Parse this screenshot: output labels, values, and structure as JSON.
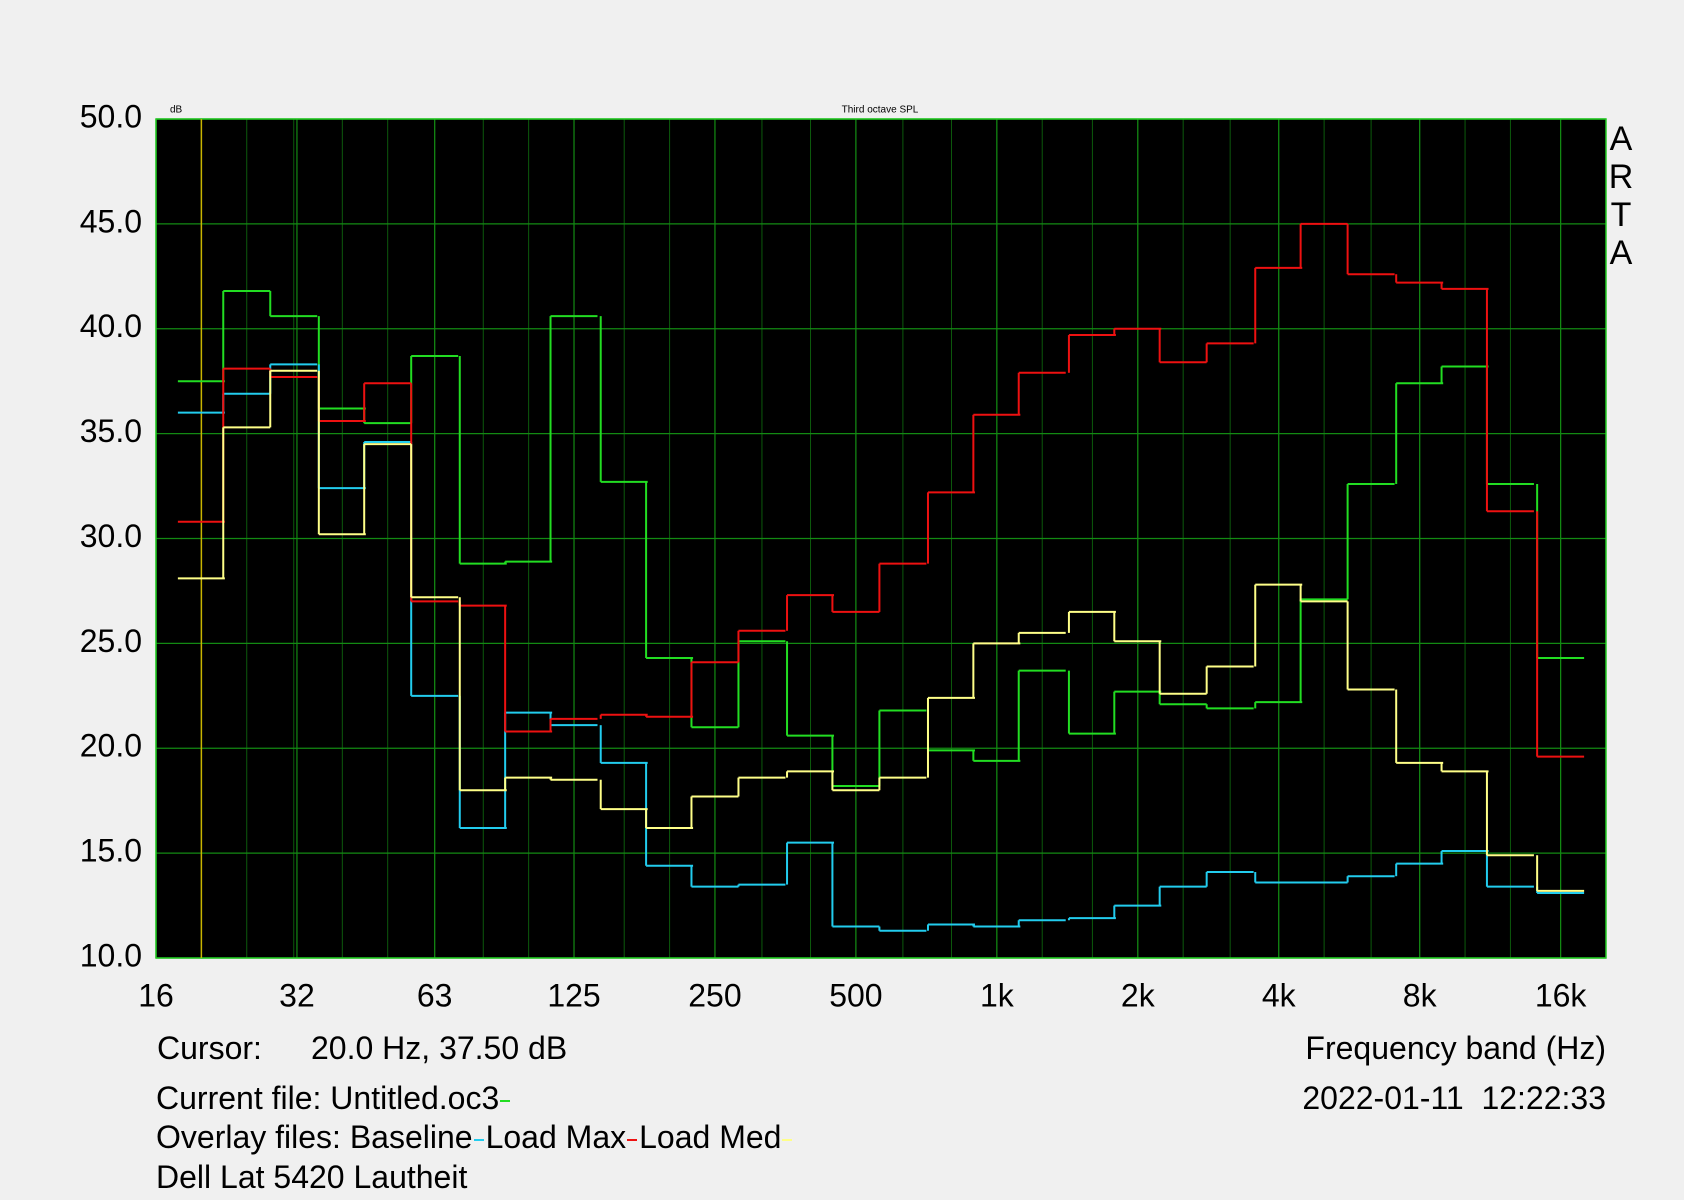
{
  "chart_data": {
    "type": "step",
    "title": "Third octave SPL",
    "y_unit": "dB",
    "brand": "ARTA",
    "x_label": "Frequency band (Hz)",
    "cursor_label": "Cursor:",
    "cursor_readout": "20.0 Hz, 37.50 dB",
    "cursor_x": 20,
    "cursor_color": "#c8b400",
    "current_file_label": "Current file:",
    "overlay_label": "Overlay files:",
    "timestamp": "2022-01-11  12:22:33",
    "note": "Dell Lat 5420 Lautheit",
    "log_x": true,
    "grid": true,
    "x": [
      20,
      25,
      31.5,
      40,
      50,
      63,
      80,
      100,
      125,
      160,
      200,
      250,
      315,
      400,
      500,
      630,
      800,
      1000,
      1250,
      1600,
      2000,
      2500,
      3150,
      4000,
      5000,
      6300,
      8000,
      10000,
      12500,
      16000
    ],
    "xlim": [
      16,
      20000
    ],
    "xticks": [
      16,
      32,
      63,
      125,
      250,
      500,
      {
        "value": 1000,
        "label": "1k"
      },
      {
        "value": 2000,
        "label": "2k"
      },
      {
        "value": 4000,
        "label": "4k"
      },
      {
        "value": 8000,
        "label": "8k"
      },
      {
        "value": 16000,
        "label": "16k"
      }
    ],
    "ylim": [
      10,
      50
    ],
    "yticks": [
      {
        "value": 10,
        "label": "10.0"
      },
      {
        "value": 15,
        "label": "15.0"
      },
      {
        "value": 20,
        "label": "20.0"
      },
      {
        "value": 25,
        "label": "25.0"
      },
      {
        "value": 30,
        "label": "30.0"
      },
      {
        "value": 35,
        "label": "35.0"
      },
      {
        "value": 40,
        "label": "40.0"
      },
      {
        "value": 45,
        "label": "45.0"
      },
      {
        "value": 50,
        "label": "50.0"
      }
    ],
    "series": [
      {
        "name": "Untitled.oc3",
        "color": "#22dd22",
        "values": [
          37.5,
          41.8,
          40.6,
          36.2,
          35.5,
          38.7,
          28.8,
          28.9,
          40.6,
          32.7,
          24.3,
          21.0,
          25.1,
          20.6,
          18.2,
          21.8,
          19.9,
          19.4,
          23.7,
          20.7,
          22.7,
          22.1,
          21.9,
          22.2,
          27.1,
          32.6,
          37.4,
          38.2,
          32.6,
          24.3
        ]
      },
      {
        "name": "Baseline",
        "color": "#22ccee",
        "values": [
          36.0,
          36.9,
          38.3,
          32.4,
          34.6,
          22.5,
          16.2,
          21.7,
          21.1,
          19.3,
          14.4,
          13.4,
          13.5,
          15.5,
          11.5,
          11.3,
          11.6,
          11.5,
          11.8,
          11.9,
          12.5,
          13.4,
          14.1,
          13.6,
          13.6,
          13.9,
          14.5,
          15.1,
          13.4,
          13.1
        ]
      },
      {
        "name": "Load Max",
        "color": "#ee1111",
        "values": [
          30.8,
          38.1,
          37.7,
          35.6,
          37.4,
          27.0,
          26.8,
          20.8,
          21.4,
          21.6,
          21.5,
          24.1,
          25.6,
          27.3,
          26.5,
          28.8,
          32.2,
          35.9,
          37.9,
          39.7,
          40.0,
          38.4,
          39.3,
          42.9,
          45.0,
          42.6,
          42.2,
          41.9,
          31.3,
          19.6
        ]
      },
      {
        "name": "Load Med",
        "color": "#ffff88",
        "values": [
          28.1,
          35.3,
          38.0,
          30.2,
          34.5,
          27.2,
          18.0,
          18.6,
          18.5,
          17.1,
          16.2,
          17.7,
          18.6,
          18.9,
          18.0,
          18.6,
          22.4,
          25.0,
          25.5,
          26.5,
          25.1,
          22.6,
          23.9,
          27.8,
          27.0,
          22.8,
          19.3,
          18.9,
          14.9,
          13.2
        ]
      }
    ]
  }
}
